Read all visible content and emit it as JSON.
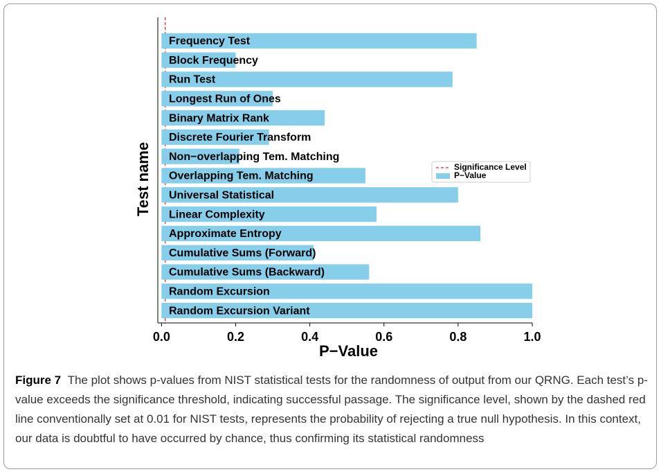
{
  "chart_data": {
    "type": "barh",
    "categories": [
      "Frequency Test",
      "Block Frequency",
      "Run Test",
      "Longest Run of Ones",
      "Binary Matrix Rank",
      "Discrete Fourier Transform",
      "Non−overlapping Tem. Matching",
      "Overlapping Tem. Matching",
      "Universal Statistical",
      "Linear Complexity",
      "Approximate Entropy",
      "Cumulative Sums (Forward)",
      "Cumulative Sums (Backward)",
      "Random Excursion",
      "Random Excursion Variant"
    ],
    "series": [
      {
        "name": "P−Value",
        "color": "#87ceeb",
        "values": [
          0.85,
          0.2,
          0.785,
          0.3,
          0.44,
          0.29,
          0.21,
          0.55,
          0.8,
          0.58,
          0.86,
          0.41,
          0.56,
          1.0,
          1.0
        ]
      }
    ],
    "significance": {
      "name": "Significance Level",
      "value": 0.01,
      "color": "#e8282b"
    },
    "xlabel": "P−Value",
    "ylabel": "Test name",
    "xlim": [
      -0.01,
      1.0
    ],
    "xticks": [
      {
        "value": 0,
        "label": "0.0"
      },
      0.2,
      0.4,
      0.6,
      0.8,
      {
        "value": 1,
        "label": "1.0"
      }
    ],
    "legend": "center right"
  },
  "caption": {
    "label": "Figure 7",
    "text": "The plot shows p-values from NIST statistical tests for the randomness of output from our QRNG. Each test’s p-value exceeds the significance threshold, indicating successful passage. The significance level, shown by the dashed red line conventionally set at 0.01 for NIST tests, represents the probability of rejecting a true null hypothesis. In this context, our data is doubtful to have occurred by chance, thus confirming its statistical randomness"
  }
}
